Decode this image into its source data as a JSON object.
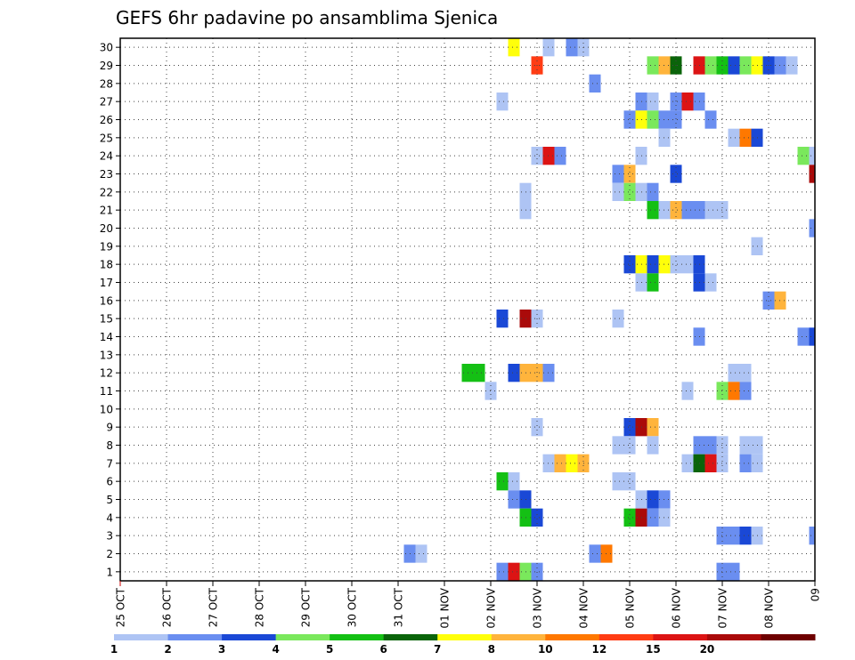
{
  "chart_data": {
    "type": "heatmap",
    "title": "GEFS 6hr padavine po ansamblima Sjenica",
    "x_tick_labels": [
      "25 OCT",
      "26 OCT",
      "27 OCT",
      "28 OCT",
      "29 OCT",
      "30 OCT",
      "31 OCT",
      "01 NOV",
      "02 NOV",
      "03 NOV",
      "04 NOV",
      "05 NOV",
      "06 NOV",
      "07 NOV",
      "08 NOV",
      "09"
    ],
    "y_tick_labels": [
      "1",
      "2",
      "3",
      "4",
      "5",
      "6",
      "7",
      "8",
      "9",
      "10",
      "11",
      "12",
      "13",
      "14",
      "15",
      "16",
      "17",
      "18",
      "19",
      "20",
      "21",
      "22",
      "23",
      "24",
      "25",
      "26",
      "27",
      "28",
      "29",
      "30"
    ],
    "x_unit": "6-hour steps from 25 OCT 00Z",
    "xlim": [
      0,
      60
    ],
    "ylim": [
      0.5,
      30.5
    ],
    "grid": true,
    "legend": {
      "placement": "bottom",
      "labels": [
        "1",
        "2",
        "3",
        "4",
        "5",
        "6",
        "7",
        "8",
        "10",
        "12",
        "15",
        "20"
      ],
      "colors": [
        "#aec4f4",
        "#6a8ef0",
        "#1a48d6",
        "#7ae85c",
        "#14c014",
        "#0a640a",
        "#ffff0a",
        "#ffb43c",
        "#ff7800",
        "#ff3c14",
        "#dc1414",
        "#aa0a0a",
        "#6e0000"
      ]
    },
    "cells": [
      [
        34,
        30,
        6
      ],
      [
        37,
        30,
        0
      ],
      [
        39,
        30,
        1
      ],
      [
        40,
        30,
        0
      ],
      [
        36,
        29,
        9
      ],
      [
        46,
        29,
        3
      ],
      [
        47,
        29,
        7
      ],
      [
        48,
        29,
        5
      ],
      [
        50,
        29,
        10
      ],
      [
        51,
        29,
        3
      ],
      [
        52,
        29,
        4
      ],
      [
        53,
        29,
        2
      ],
      [
        54,
        29,
        3
      ],
      [
        55,
        29,
        6
      ],
      [
        56,
        29,
        2
      ],
      [
        57,
        29,
        1
      ],
      [
        58,
        29,
        0
      ],
      [
        41,
        28,
        1
      ],
      [
        33,
        27,
        0
      ],
      [
        45,
        27,
        1
      ],
      [
        46,
        27,
        0
      ],
      [
        48,
        27,
        1
      ],
      [
        49,
        27,
        10
      ],
      [
        50,
        27,
        1
      ],
      [
        44,
        26,
        1
      ],
      [
        45,
        26,
        6
      ],
      [
        46,
        26,
        3
      ],
      [
        47,
        26,
        1
      ],
      [
        48,
        26,
        1
      ],
      [
        51,
        26,
        1
      ],
      [
        47,
        25,
        0
      ],
      [
        53,
        25,
        0
      ],
      [
        54,
        25,
        8
      ],
      [
        55,
        25,
        2
      ],
      [
        36,
        24,
        0
      ],
      [
        37,
        24,
        10
      ],
      [
        38,
        24,
        1
      ],
      [
        45,
        24,
        0
      ],
      [
        59,
        24,
        3
      ],
      [
        60,
        24,
        0
      ],
      [
        43,
        23,
        1
      ],
      [
        44,
        23,
        7
      ],
      [
        48,
        23,
        2
      ],
      [
        60,
        23,
        11
      ],
      [
        35,
        22,
        0
      ],
      [
        43,
        22,
        0
      ],
      [
        44,
        22,
        3
      ],
      [
        45,
        22,
        0
      ],
      [
        46,
        22,
        1
      ],
      [
        35,
        21,
        0
      ],
      [
        46,
        21,
        4
      ],
      [
        47,
        21,
        0
      ],
      [
        48,
        21,
        7
      ],
      [
        49,
        21,
        1
      ],
      [
        50,
        21,
        1
      ],
      [
        51,
        21,
        0
      ],
      [
        52,
        21,
        0
      ],
      [
        60,
        20,
        1
      ],
      [
        55,
        19,
        0
      ],
      [
        44,
        18,
        2
      ],
      [
        45,
        18,
        6
      ],
      [
        46,
        18,
        2
      ],
      [
        47,
        18,
        6
      ],
      [
        48,
        18,
        0
      ],
      [
        49,
        18,
        0
      ],
      [
        50,
        18,
        2
      ],
      [
        45,
        17,
        0
      ],
      [
        46,
        17,
        4
      ],
      [
        50,
        17,
        2
      ],
      [
        51,
        17,
        0
      ],
      [
        56,
        16,
        1
      ],
      [
        57,
        16,
        7
      ],
      [
        33,
        15,
        2
      ],
      [
        35,
        15,
        11
      ],
      [
        36,
        15,
        0
      ],
      [
        43,
        15,
        0
      ],
      [
        50,
        14,
        1
      ],
      [
        59,
        14,
        1
      ],
      [
        60,
        14,
        2
      ],
      [
        30,
        12,
        4
      ],
      [
        31,
        12,
        4
      ],
      [
        34,
        12,
        2
      ],
      [
        35,
        12,
        7
      ],
      [
        36,
        12,
        7
      ],
      [
        37,
        12,
        1
      ],
      [
        53,
        12,
        0
      ],
      [
        54,
        12,
        0
      ],
      [
        32,
        11,
        0
      ],
      [
        49,
        11,
        0
      ],
      [
        52,
        11,
        3
      ],
      [
        53,
        11,
        8
      ],
      [
        54,
        11,
        1
      ],
      [
        36,
        9,
        0
      ],
      [
        44,
        9,
        2
      ],
      [
        45,
        9,
        11
      ],
      [
        46,
        9,
        7
      ],
      [
        43,
        8,
        0
      ],
      [
        44,
        8,
        0
      ],
      [
        46,
        8,
        0
      ],
      [
        50,
        8,
        1
      ],
      [
        51,
        8,
        1
      ],
      [
        52,
        8,
        0
      ],
      [
        54,
        8,
        0
      ],
      [
        55,
        8,
        0
      ],
      [
        37,
        7,
        0
      ],
      [
        38,
        7,
        7
      ],
      [
        39,
        7,
        6
      ],
      [
        40,
        7,
        7
      ],
      [
        49,
        7,
        0
      ],
      [
        50,
        7,
        5
      ],
      [
        51,
        7,
        10
      ],
      [
        52,
        7,
        0
      ],
      [
        54,
        7,
        1
      ],
      [
        55,
        7,
        0
      ],
      [
        33,
        6,
        4
      ],
      [
        34,
        6,
        0
      ],
      [
        43,
        6,
        0
      ],
      [
        44,
        6,
        0
      ],
      [
        34,
        5,
        1
      ],
      [
        35,
        5,
        2
      ],
      [
        45,
        5,
        0
      ],
      [
        46,
        5,
        2
      ],
      [
        47,
        5,
        1
      ],
      [
        35,
        4,
        4
      ],
      [
        36,
        4,
        2
      ],
      [
        44,
        4,
        4
      ],
      [
        45,
        4,
        11
      ],
      [
        46,
        4,
        1
      ],
      [
        47,
        4,
        0
      ],
      [
        52,
        3,
        1
      ],
      [
        53,
        3,
        1
      ],
      [
        54,
        3,
        2
      ],
      [
        55,
        3,
        0
      ],
      [
        60,
        3,
        1
      ],
      [
        25,
        2,
        1
      ],
      [
        26,
        2,
        0
      ],
      [
        41,
        2,
        1
      ],
      [
        42,
        2,
        8
      ],
      [
        33,
        1,
        1
      ],
      [
        34,
        1,
        10
      ],
      [
        35,
        1,
        3
      ],
      [
        36,
        1,
        1
      ],
      [
        52,
        1,
        1
      ],
      [
        53,
        1,
        1
      ]
    ]
  }
}
